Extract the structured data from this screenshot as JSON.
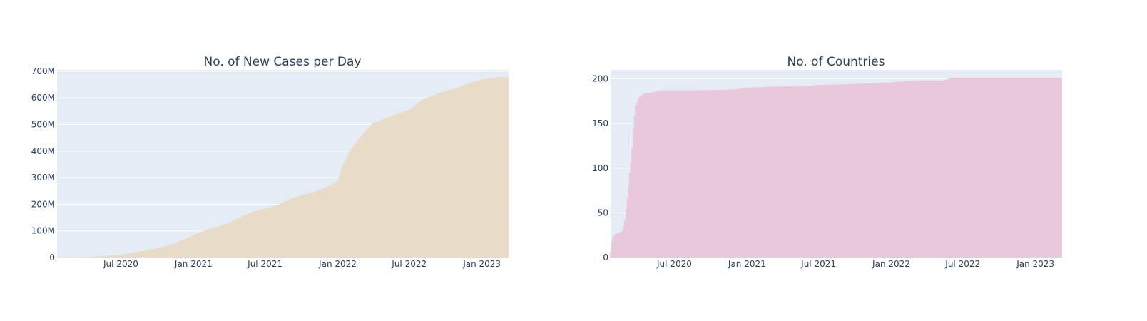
{
  "style": {
    "plot_bg": "#e5ecf6",
    "grid": "#ffffff",
    "text": "#2a3f5f"
  },
  "charts": [
    {
      "title": "No. of New Cases per Day",
      "color": "#e8dcc8",
      "y_ticks": [
        {
          "v": 0,
          "label": "0"
        },
        {
          "v": 100,
          "label": "100M"
        },
        {
          "v": 200,
          "label": "200M"
        },
        {
          "v": 300,
          "label": "300M"
        },
        {
          "v": 400,
          "label": "400M"
        },
        {
          "v": 500,
          "label": "500M"
        },
        {
          "v": 600,
          "label": "600M"
        },
        {
          "v": 700,
          "label": "700M"
        }
      ]
    },
    {
      "title": "No. of Countries",
      "color": "#e9c8dc",
      "y_ticks": [
        {
          "v": 0,
          "label": "0"
        },
        {
          "v": 50,
          "label": "50"
        },
        {
          "v": 100,
          "label": "100"
        },
        {
          "v": 150,
          "label": "150"
        },
        {
          "v": 200,
          "label": "200"
        }
      ]
    }
  ],
  "x_ticks": [
    {
      "date": "2020-07-01",
      "label": "Jul 2020"
    },
    {
      "date": "2021-01-01",
      "label": "Jan 2021"
    },
    {
      "date": "2021-07-01",
      "label": "Jul 2021"
    },
    {
      "date": "2022-01-01",
      "label": "Jan 2022"
    },
    {
      "date": "2022-07-01",
      "label": "Jul 2022"
    },
    {
      "date": "2023-01-01",
      "label": "Jan 2023"
    }
  ],
  "chart_data": [
    {
      "type": "bar",
      "title": "No. of New Cases per Day",
      "xlabel": "",
      "ylabel": "",
      "x_range": [
        "2020-01-22",
        "2023-03-09"
      ],
      "ylim": [
        0,
        705
      ],
      "y_unit": "M",
      "grid": true,
      "x": [
        "2020-01-22",
        "2020-03-01",
        "2020-04-01",
        "2020-05-01",
        "2020-06-01",
        "2020-07-01",
        "2020-08-01",
        "2020-09-01",
        "2020-10-01",
        "2020-11-01",
        "2020-12-01",
        "2021-01-01",
        "2021-02-01",
        "2021-03-01",
        "2021-04-01",
        "2021-05-01",
        "2021-06-01",
        "2021-07-01",
        "2021-08-01",
        "2021-09-01",
        "2021-10-01",
        "2021-11-01",
        "2021-12-01",
        "2022-01-01",
        "2022-01-15",
        "2022-02-01",
        "2022-02-15",
        "2022-03-01",
        "2022-03-15",
        "2022-04-01",
        "2022-05-01",
        "2022-06-01",
        "2022-07-01",
        "2022-08-01",
        "2022-09-01",
        "2022-10-01",
        "2022-11-01",
        "2022-12-01",
        "2023-01-01",
        "2023-02-01",
        "2023-03-09"
      ],
      "y": [
        0.0005,
        0.09,
        0.9,
        3.3,
        6.2,
        10.5,
        17.5,
        25.5,
        34.5,
        46,
        63,
        83,
        103,
        114,
        130,
        152,
        172,
        182,
        197,
        218,
        233,
        246,
        262,
        288,
        350,
        400,
        430,
        455,
        480,
        505,
        522,
        540,
        555,
        590,
        610,
        625,
        638,
        655,
        668,
        676,
        678
      ]
    },
    {
      "type": "bar",
      "title": "No. of Countries",
      "xlabel": "",
      "ylabel": "",
      "x_range": [
        "2020-01-22",
        "2023-03-09"
      ],
      "ylim": [
        0,
        210
      ],
      "grid": true,
      "x": [
        "2020-01-22",
        "2020-01-24",
        "2020-01-27",
        "2020-01-31",
        "2020-02-08",
        "2020-02-15",
        "2020-02-22",
        "2020-02-28",
        "2020-03-05",
        "2020-03-10",
        "2020-03-15",
        "2020-03-20",
        "2020-03-25",
        "2020-04-01",
        "2020-04-10",
        "2020-04-20",
        "2020-05-01",
        "2020-06-01",
        "2020-09-01",
        "2020-12-01",
        "2021-01-01",
        "2021-03-01",
        "2021-06-01",
        "2021-07-01",
        "2021-10-01",
        "2022-01-01",
        "2022-03-01",
        "2022-05-15",
        "2022-06-01",
        "2023-03-09"
      ],
      "y": [
        6,
        15,
        22,
        25,
        27,
        28,
        30,
        45,
        70,
        95,
        115,
        150,
        170,
        178,
        182,
        184,
        184,
        187,
        187,
        188,
        190,
        191,
        192,
        193,
        194,
        196,
        198,
        198,
        201,
        201
      ]
    }
  ]
}
